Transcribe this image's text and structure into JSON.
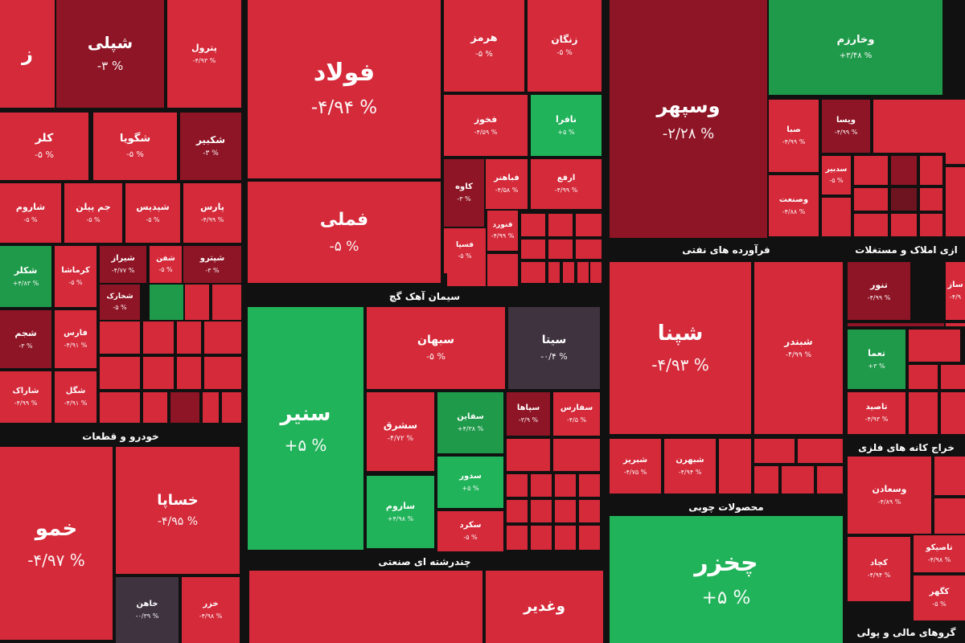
{
  "chart_data": {
    "type": "treemap",
    "colors": {
      "red": "#d42a3a",
      "dark_red": "#8e1525",
      "maroon": "#6e1420",
      "green": "#1f9a4a",
      "light_green": "#21b35a",
      "gray": "#3f3340",
      "background": "#111111"
    },
    "sectors": [
      {
        "id": "s1",
        "label": "خودرو و قطعات"
      },
      {
        "id": "s2",
        "label": "سیمان آهک گچ"
      },
      {
        "id": "s3",
        "label": "فرآورده های نفتی"
      },
      {
        "id": "s4",
        "label": "ازی املاک و مستغلات"
      },
      {
        "id": "s5",
        "label": "چندرشته ای صنعتی"
      },
      {
        "id": "s6",
        "label": "محصولات چوبی"
      },
      {
        "id": "s7",
        "label": "خراج کانه های فلزی"
      },
      {
        "id": "s8",
        "label": "گروهای مالی و پولی"
      }
    ],
    "tiles": [
      {
        "name": "ز",
        "pct": "",
        "color": "red"
      },
      {
        "name": "شپلی",
        "pct": "-۳ %",
        "color": "dark_red"
      },
      {
        "name": "پترول",
        "pct": "-۴/۹۳ %",
        "color": "red"
      },
      {
        "name": "فولاد",
        "pct": "-۴/۹۴ %",
        "color": "red"
      },
      {
        "name": "هرمز",
        "pct": "-۵ %",
        "color": "red"
      },
      {
        "name": "زنگان",
        "pct": "-۵ %",
        "color": "red"
      },
      {
        "name": "وسپهر",
        "pct": "-۲/۲۸ %",
        "color": "dark_red"
      },
      {
        "name": "وخارزم",
        "pct": "+۳/۴۸ %",
        "color": "green"
      },
      {
        "name": "کلر",
        "pct": "-۵ %",
        "color": "red"
      },
      {
        "name": "شگویا",
        "pct": "-۵ %",
        "color": "red"
      },
      {
        "name": "شکبیر",
        "pct": "-۳ %",
        "color": "dark_red"
      },
      {
        "name": "فخوز",
        "pct": "-۴/۵۹ %",
        "color": "red"
      },
      {
        "name": "نافرا",
        "pct": "+۵ %",
        "color": "light_green"
      },
      {
        "name": "صبا",
        "pct": "-۴/۹۹ %",
        "color": "red"
      },
      {
        "name": "ویسا",
        "pct": "-۴/۹۹ %",
        "color": "dark_red"
      },
      {
        "name": "شاروم",
        "pct": "-۵ %",
        "color": "red"
      },
      {
        "name": "جم پیلن",
        "pct": "-۵ %",
        "color": "red"
      },
      {
        "name": "شپدیس",
        "pct": "-۵ %",
        "color": "red"
      },
      {
        "name": "پارس",
        "pct": "-۴/۹۹ %",
        "color": "red"
      },
      {
        "name": "فملی",
        "pct": "-۵ %",
        "color": "red"
      },
      {
        "name": "کاوه",
        "pct": "-۳ %",
        "color": "dark_red"
      },
      {
        "name": "فباهنر",
        "pct": "-۴/۵۸ %",
        "color": "red"
      },
      {
        "name": "ارفع",
        "pct": "-۴/۹۹ %",
        "color": "red"
      },
      {
        "name": "وصنعت",
        "pct": "-۴/۸۸ %",
        "color": "red"
      },
      {
        "name": "سدبیر",
        "pct": "-۵ %",
        "color": "red"
      },
      {
        "name": "فنورد",
        "pct": "-۴/۹۹ %",
        "color": "red"
      },
      {
        "name": "فسپا",
        "pct": "-۵ %",
        "color": "red"
      },
      {
        "name": "شکلر",
        "pct": "+۴/۸۳ %",
        "color": "green"
      },
      {
        "name": "کرماشا",
        "pct": "-۵ %",
        "color": "red"
      },
      {
        "name": "شیراز",
        "pct": "-۴/۷۷ %",
        "color": "dark_red"
      },
      {
        "name": "شفن",
        "pct": "-۵ %",
        "color": "red"
      },
      {
        "name": "شپترو",
        "pct": "-۳ %",
        "color": "dark_red"
      },
      {
        "name": "شخارک",
        "pct": "-۵ %",
        "color": "dark_red"
      },
      {
        "name": "شجم",
        "pct": "-۳ %",
        "color": "dark_red"
      },
      {
        "name": "فارس",
        "pct": "-۴/۹۱ %",
        "color": "red"
      },
      {
        "name": "شاراک",
        "pct": "-۴/۹۹ %",
        "color": "red"
      },
      {
        "name": "شگل",
        "pct": "-۴/۹۱ %",
        "color": "red"
      },
      {
        "name": "سنیر",
        "pct": "+۵ %",
        "color": "light_green"
      },
      {
        "name": "سبهان",
        "pct": "-۵ %",
        "color": "red"
      },
      {
        "name": "سیتا",
        "pct": "-۰/۴ %",
        "color": "gray"
      },
      {
        "name": "شپنا",
        "pct": "-۴/۹۳ %",
        "color": "red"
      },
      {
        "name": "شبندر",
        "pct": "-۴/۹۹ %",
        "color": "red"
      },
      {
        "name": "تنور",
        "pct": "-۴/۹۹ %",
        "color": "dark_red"
      },
      {
        "name": "ساز",
        "pct": "-۴/۹",
        "color": "red"
      },
      {
        "name": "تعما",
        "pct": "+۳ %",
        "color": "green"
      },
      {
        "name": "سشرق",
        "pct": "-۴/۷۲ %",
        "color": "red"
      },
      {
        "name": "سفاین",
        "pct": "+۴/۳۸ %",
        "color": "green"
      },
      {
        "name": "سپاها",
        "pct": "-۳/۹ %",
        "color": "dark_red"
      },
      {
        "name": "سفارس",
        "pct": "-۴/۵ %",
        "color": "red"
      },
      {
        "name": "تاصید",
        "pct": "-۴/۹۳ %",
        "color": "red"
      },
      {
        "name": "ساروم",
        "pct": "+۴/۹۸ %",
        "color": "light_green"
      },
      {
        "name": "سدور",
        "pct": "+۵ %",
        "color": "light_green"
      },
      {
        "name": "سکرد",
        "pct": "-۵ %",
        "color": "red"
      },
      {
        "name": "شبریز",
        "pct": "-۴/۷۵ %",
        "color": "red"
      },
      {
        "name": "شبهرن",
        "pct": "-۴/۹۴ %",
        "color": "red"
      },
      {
        "name": "خساپا",
        "pct": "-۴/۹۵ %",
        "color": "red"
      },
      {
        "name": "خمو",
        "pct": "-۴/۹۷ %",
        "color": "red"
      },
      {
        "name": "وسعادن",
        "pct": "-۴/۸۹ %",
        "color": "red"
      },
      {
        "name": "چخزر",
        "pct": "+۵ %",
        "color": "light_green"
      },
      {
        "name": "خاهن",
        "pct": "-۰/۳۹ %",
        "color": "gray"
      },
      {
        "name": "خزر",
        "pct": "-۴/۹۸ %",
        "color": "red"
      },
      {
        "name": "وغدیر",
        "pct": "",
        "color": "red"
      },
      {
        "name": "تاصیکو",
        "pct": "-۴/۹۸ %",
        "color": "red"
      },
      {
        "name": "کچاد",
        "pct": "-۴/۹۴ %",
        "color": "red"
      },
      {
        "name": "کگهر",
        "pct": "-۵ %",
        "color": "red"
      }
    ]
  }
}
